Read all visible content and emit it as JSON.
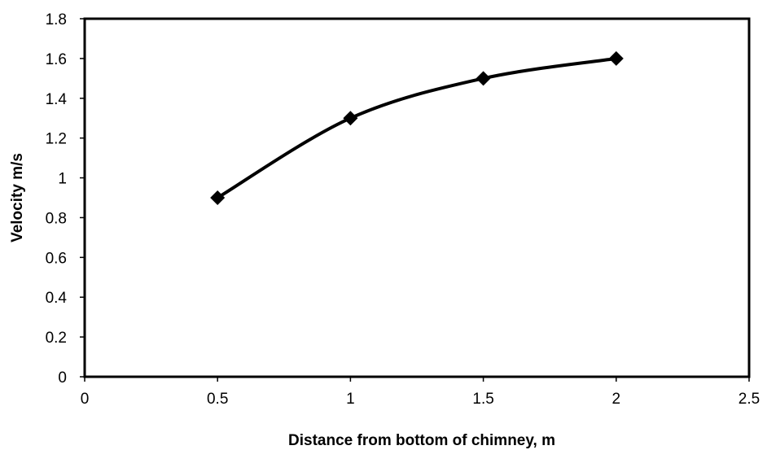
{
  "chart_data": {
    "type": "line",
    "title": "",
    "xlabel": "Distance from bottom of chimney,  m",
    "ylabel": "Velocity m/s",
    "xlim": [
      0,
      2.5
    ],
    "ylim": [
      0,
      1.8
    ],
    "xticks": [
      0,
      0.5,
      1,
      1.5,
      2,
      2.5
    ],
    "xtick_labels": [
      "0",
      "0.5",
      "1",
      "1.5",
      "2",
      "2.5"
    ],
    "yticks": [
      0,
      0.2,
      0.4,
      0.6,
      0.8,
      1,
      1.2,
      1.4,
      1.6,
      1.8
    ],
    "ytick_labels": [
      "0",
      "0.2",
      "0.4",
      "0.6",
      "0.8",
      "1",
      "1.2",
      "1.4",
      "1.6",
      "1.8"
    ],
    "grid": false,
    "legend": "none",
    "series": [
      {
        "x": [
          0.5,
          1,
          1.5,
          2
        ],
        "values": [
          0.9,
          1.3,
          1.5,
          1.6
        ],
        "marker": "diamond",
        "smooth": true,
        "color": "#000000"
      }
    ]
  }
}
